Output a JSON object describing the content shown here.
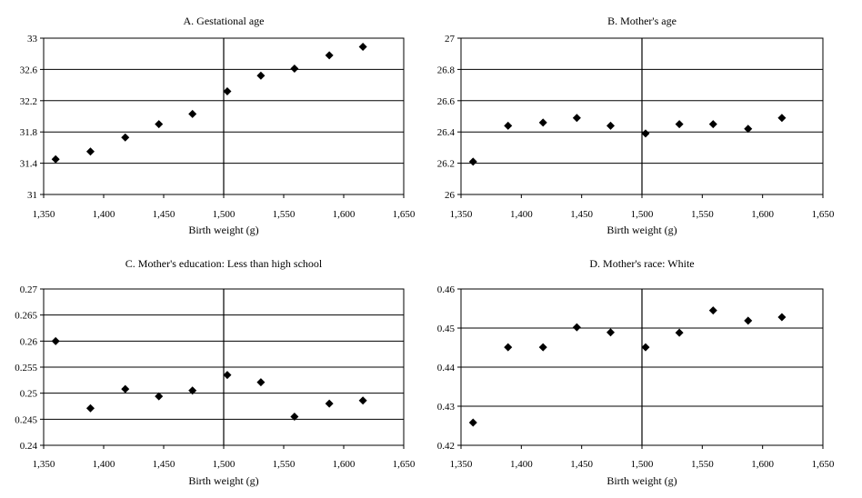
{
  "chart_data": [
    {
      "type": "scatter",
      "title": "A. Gestational age",
      "xlabel": "Birth weight (g)",
      "ylabel": "",
      "xlim": [
        1350,
        1650
      ],
      "ylim": [
        31,
        33
      ],
      "x_ticks": [
        "1,350",
        "1,400",
        "1,450",
        "1,500",
        "1,550",
        "1,600",
        "1,650"
      ],
      "y_ticks": [
        "31",
        "31.4",
        "31.8",
        "32.2",
        "32.6",
        "33"
      ],
      "y_tick_values": [
        31,
        31.4,
        31.8,
        32.2,
        32.6,
        33
      ],
      "grid": "horizontal",
      "cutoff_line": 1500,
      "x": [
        1360,
        1389,
        1418,
        1446,
        1474,
        1503,
        1531,
        1559,
        1588,
        1616
      ],
      "y": [
        31.45,
        31.55,
        31.73,
        31.9,
        32.03,
        32.32,
        32.52,
        32.61,
        32.78,
        32.89
      ]
    },
    {
      "type": "scatter",
      "title": "B. Mother's age",
      "xlabel": "Birth weight (g)",
      "ylabel": "",
      "xlim": [
        1350,
        1650
      ],
      "ylim": [
        26,
        27
      ],
      "x_ticks": [
        "1,350",
        "1,400",
        "1,450",
        "1,500",
        "1,550",
        "1,600",
        "1,650"
      ],
      "y_ticks": [
        "26",
        "26.2",
        "26.4",
        "26.6",
        "26.8",
        "27"
      ],
      "y_tick_values": [
        26,
        26.2,
        26.4,
        26.6,
        26.8,
        27
      ],
      "grid": "horizontal",
      "cutoff_line": 1500,
      "x": [
        1360,
        1389,
        1418,
        1446,
        1474,
        1503,
        1531,
        1559,
        1588,
        1616
      ],
      "y": [
        26.21,
        26.44,
        26.46,
        26.49,
        26.44,
        26.39,
        26.45,
        26.45,
        26.42,
        26.49
      ]
    },
    {
      "type": "scatter",
      "title": "C. Mother's education:  Less than high school",
      "xlabel": "Birth weight (g)",
      "ylabel": "",
      "xlim": [
        1350,
        1650
      ],
      "ylim": [
        0.24,
        0.27
      ],
      "x_ticks": [
        "1,350",
        "1,400",
        "1,450",
        "1,500",
        "1,550",
        "1,600",
        "1,650"
      ],
      "y_ticks": [
        "0.24",
        "0.245",
        "0.25",
        "0.255",
        "0.26",
        "0.265",
        "0.27"
      ],
      "y_tick_values": [
        0.24,
        0.245,
        0.25,
        0.255,
        0.26,
        0.265,
        0.27
      ],
      "grid": "horizontal",
      "cutoff_line": 1500,
      "x": [
        1360,
        1389,
        1418,
        1446,
        1474,
        1503,
        1531,
        1559,
        1588,
        1616
      ],
      "y": [
        0.26,
        0.2471,
        0.2508,
        0.2494,
        0.2505,
        0.2535,
        0.2521,
        0.2455,
        0.248,
        0.2486
      ]
    },
    {
      "type": "scatter",
      "title": "D.  Mother's race:  White",
      "xlabel": "Birth weight (g)",
      "ylabel": "",
      "xlim": [
        1350,
        1650
      ],
      "ylim": [
        0.42,
        0.46
      ],
      "x_ticks": [
        "1,350",
        "1,400",
        "1,450",
        "1,500",
        "1,550",
        "1,600",
        "1,650"
      ],
      "y_ticks": [
        "0.42",
        "0.43",
        "0.44",
        "0.45",
        "0.46"
      ],
      "y_tick_values": [
        0.42,
        0.43,
        0.44,
        0.45,
        0.46
      ],
      "grid": "horizontal",
      "cutoff_line": 1500,
      "x": [
        1360,
        1389,
        1418,
        1446,
        1474,
        1503,
        1531,
        1559,
        1588,
        1616
      ],
      "y": [
        0.4258,
        0.4451,
        0.4451,
        0.4502,
        0.4489,
        0.4451,
        0.4488,
        0.4545,
        0.4519,
        0.4528
      ]
    }
  ]
}
